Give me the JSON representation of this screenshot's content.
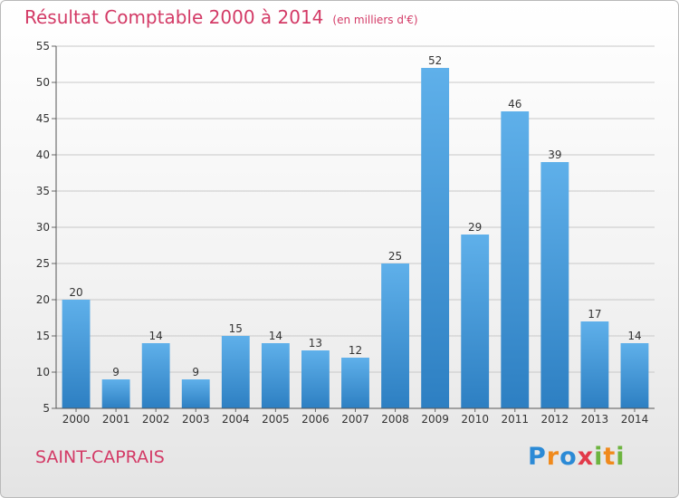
{
  "chart_data": {
    "type": "bar",
    "title": "Résultat Comptable 2000 à 2014",
    "subtitle": "(en milliers d'€)",
    "categories": [
      "2000",
      "2001",
      "2002",
      "2003",
      "2004",
      "2005",
      "2006",
      "2007",
      "2008",
      "2009",
      "2010",
      "2011",
      "2012",
      "2013",
      "2014"
    ],
    "values": [
      20,
      9,
      14,
      9,
      15,
      14,
      13,
      12,
      25,
      52,
      29,
      46,
      39,
      17,
      14
    ],
    "ylim": [
      5,
      55
    ],
    "yticks": [
      5,
      10,
      15,
      20,
      25,
      30,
      35,
      40,
      45,
      50,
      55
    ],
    "xlabel": "",
    "ylabel": "",
    "grid": true
  },
  "footer": {
    "commune": "SAINT-CAPRAIS"
  },
  "logo": {
    "text": "Proxiti"
  },
  "colors": {
    "title": "#d33a66",
    "bar_light": "#5fb0ea",
    "bar_dark": "#2d7fc2",
    "grid": "#c8c8c8"
  }
}
